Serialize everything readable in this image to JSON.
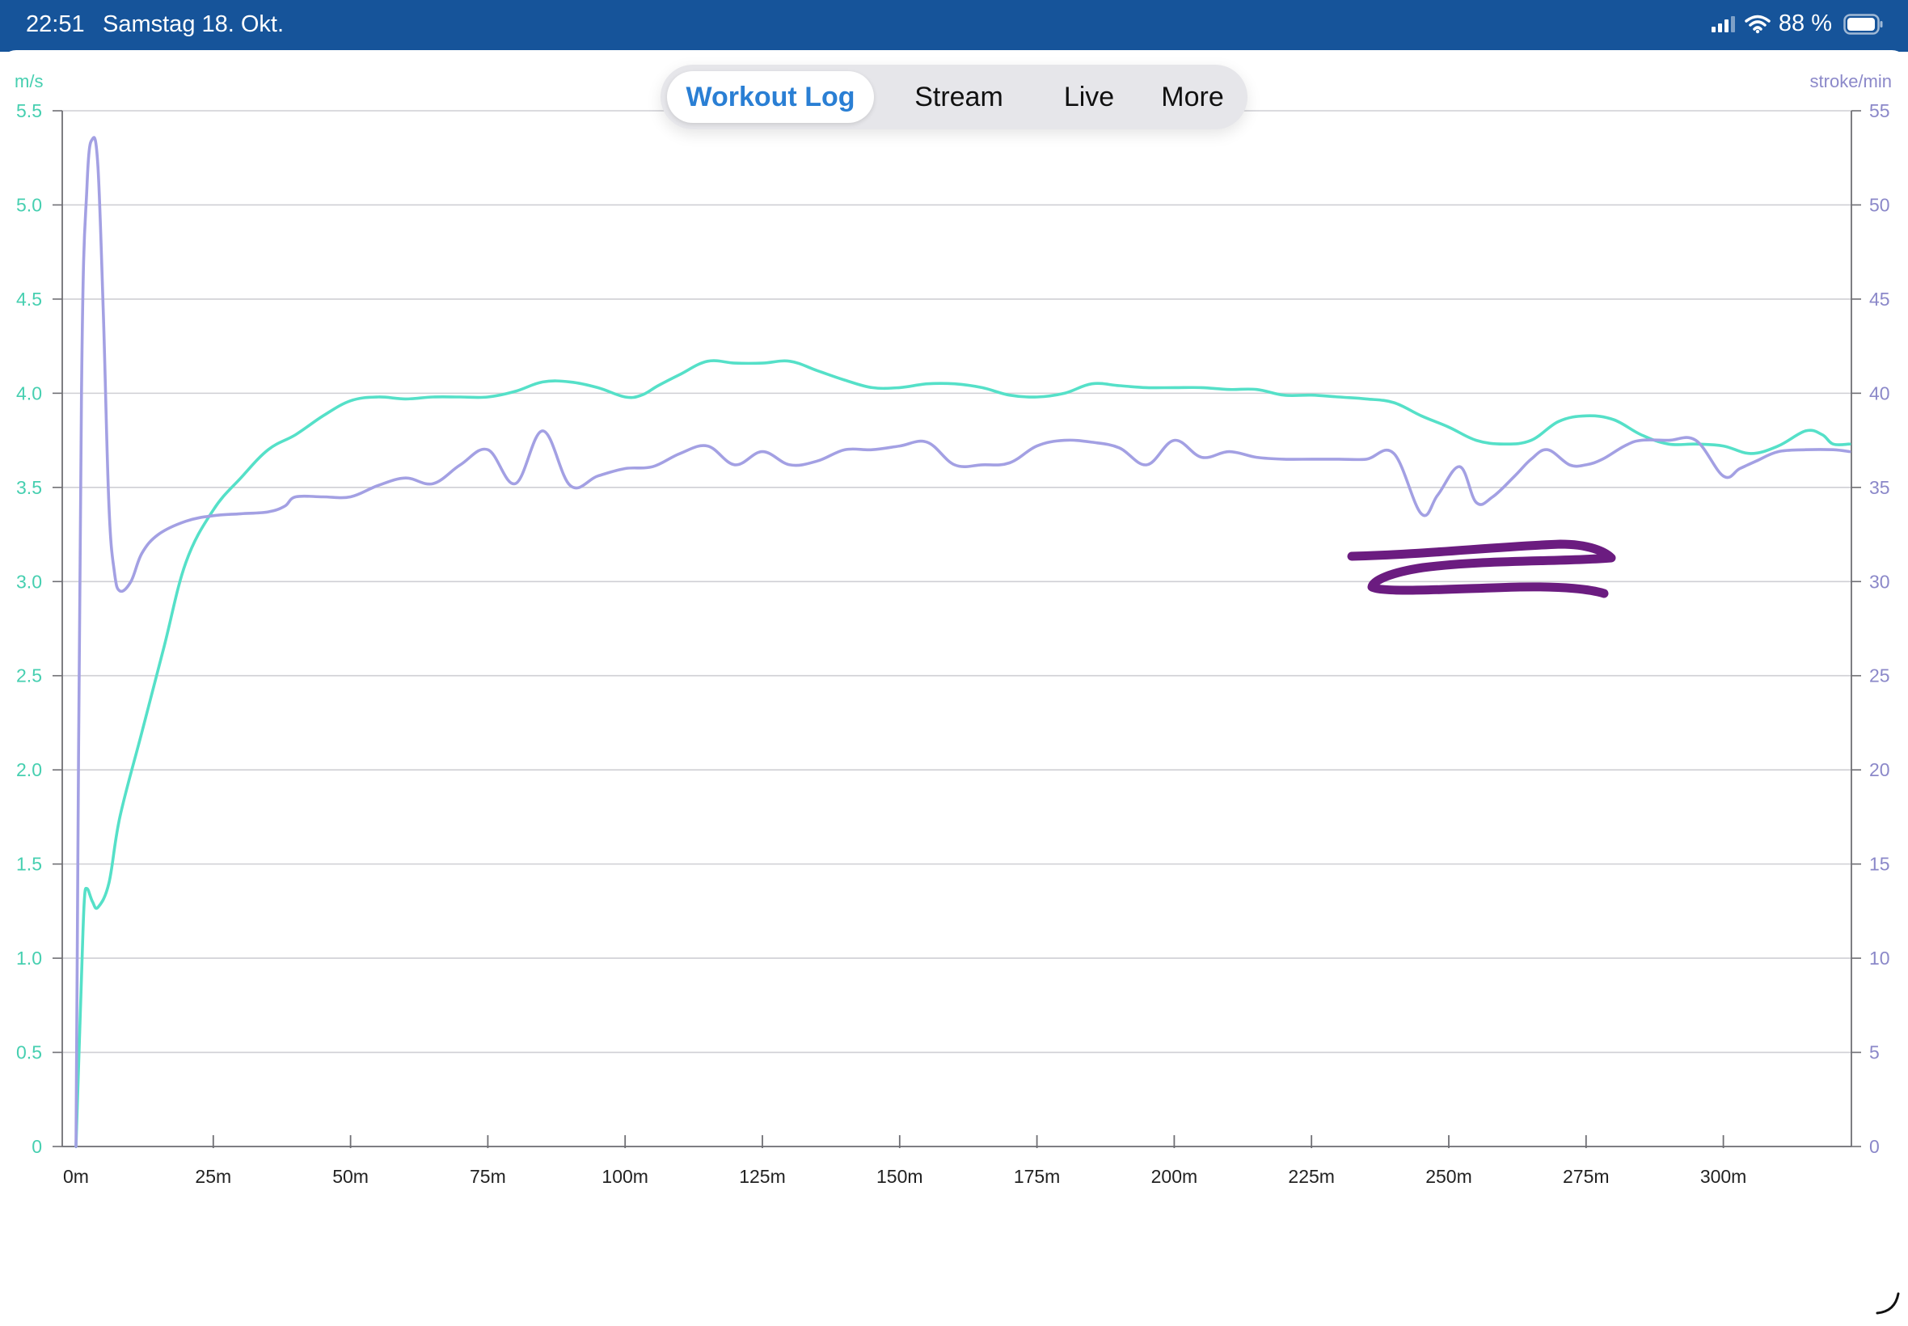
{
  "status_bar": {
    "time": "22:51",
    "date": "Samstag 18. Okt.",
    "battery": "88 %",
    "icons": [
      "cellular-signal-icon",
      "wifi-icon",
      "battery-icon"
    ]
  },
  "tabs": [
    {
      "label": "Workout Log",
      "active": true
    },
    {
      "label": "Stream",
      "active": false
    },
    {
      "label": "Live",
      "active": false
    },
    {
      "label": "More",
      "active": false
    }
  ],
  "colors": {
    "status_bar": "#16549a",
    "accent": "#2a7fd4",
    "speed": "#55e0c8",
    "stroke_rate": "#a3a0e3",
    "left_axis": "#46cfb0",
    "right_axis": "#8b88c9",
    "scribble": "#6b1c80"
  },
  "chart_data": {
    "type": "line",
    "x_unit_suffix": "m",
    "x_ticks": [
      0,
      25,
      50,
      75,
      100,
      125,
      150,
      175,
      200,
      225,
      250,
      275,
      300
    ],
    "x_tick_labels": [
      "0m",
      "25m",
      "50m",
      "75m",
      "100m",
      "125m",
      "150m",
      "175m",
      "200m",
      "225m",
      "250m",
      "275m",
      "300m"
    ],
    "xlim": [
      0,
      323
    ],
    "grid": true,
    "axes": {
      "left": {
        "unit_label": "m/s",
        "ylim": [
          0,
          5.5
        ],
        "ticks": [
          "0",
          "0.5",
          "1.0",
          "1.5",
          "2.0",
          "2.5",
          "3.0",
          "3.5",
          "4.0",
          "4.5",
          "5.0",
          "5.5"
        ]
      },
      "right": {
        "unit_label": "stroke/min",
        "ylim": [
          0,
          55
        ],
        "ticks": [
          "0",
          "5",
          "10",
          "15",
          "20",
          "25",
          "30",
          "35",
          "40",
          "45",
          "50",
          "55"
        ]
      }
    },
    "series": [
      {
        "key": "speed",
        "axis": "left",
        "x": [
          0,
          1,
          1.5,
          2,
          3,
          4,
          6,
          8,
          12,
          16,
          20,
          25,
          30,
          35,
          40,
          45,
          50,
          55,
          60,
          65,
          70,
          75,
          80,
          85,
          90,
          95,
          100,
          103,
          106,
          110,
          115,
          120,
          125,
          130,
          135,
          140,
          145,
          150,
          155,
          160,
          165,
          170,
          175,
          180,
          185,
          190,
          195,
          200,
          205,
          210,
          215,
          220,
          225,
          230,
          235,
          240,
          245,
          250,
          255,
          260,
          265,
          270,
          275,
          280,
          285,
          290,
          295,
          300,
          305,
          310,
          315,
          318,
          320,
          323
        ],
        "values": [
          0,
          0.9,
          1.3,
          1.37,
          1.3,
          1.27,
          1.4,
          1.75,
          2.2,
          2.65,
          3.1,
          3.38,
          3.55,
          3.7,
          3.78,
          3.88,
          3.96,
          3.98,
          3.97,
          3.98,
          3.98,
          3.98,
          4.01,
          4.06,
          4.06,
          4.03,
          3.98,
          3.99,
          4.04,
          4.1,
          4.17,
          4.16,
          4.16,
          4.17,
          4.12,
          4.07,
          4.03,
          4.03,
          4.05,
          4.05,
          4.03,
          3.99,
          3.98,
          4.0,
          4.05,
          4.04,
          4.03,
          4.03,
          4.03,
          4.02,
          4.02,
          3.99,
          3.99,
          3.98,
          3.97,
          3.95,
          3.88,
          3.82,
          3.75,
          3.73,
          3.75,
          3.85,
          3.88,
          3.86,
          3.78,
          3.73,
          3.73,
          3.72,
          3.68,
          3.72,
          3.8,
          3.78,
          3.73,
          3.73
        ]
      },
      {
        "key": "stroke_rate",
        "axis": "right",
        "x": [
          0,
          1,
          2,
          3,
          4,
          5,
          6,
          7,
          8,
          10,
          12,
          15,
          20,
          25,
          30,
          35,
          38,
          40,
          45,
          50,
          55,
          60,
          65,
          70,
          75,
          80,
          85,
          90,
          95,
          100,
          105,
          110,
          115,
          120,
          125,
          130,
          135,
          140,
          145,
          150,
          155,
          160,
          165,
          170,
          175,
          180,
          185,
          190,
          195,
          200,
          205,
          210,
          215,
          220,
          225,
          230,
          235,
          240,
          245,
          248,
          252,
          255,
          258,
          262,
          265,
          268,
          272,
          275,
          278,
          282,
          285,
          290,
          295,
          300,
          303,
          306,
          310,
          315,
          320,
          323
        ],
        "values": [
          0,
          40,
          51,
          53.5,
          52,
          44,
          34,
          30.5,
          29.5,
          30,
          31.5,
          32.5,
          33.2,
          33.5,
          33.6,
          33.7,
          34,
          34.5,
          34.5,
          34.5,
          35.1,
          35.5,
          35.2,
          36.2,
          37,
          35.2,
          38,
          35.1,
          35.6,
          36,
          36.1,
          36.8,
          37.2,
          36.2,
          36.9,
          36.2,
          36.4,
          37,
          37,
          37.2,
          37.4,
          36.2,
          36.2,
          36.3,
          37.2,
          37.5,
          37.4,
          37.1,
          36.2,
          37.5,
          36.6,
          36.9,
          36.6,
          36.5,
          36.5,
          36.5,
          36.5,
          36.8,
          33.6,
          34.6,
          36.1,
          34.2,
          34.5,
          35.6,
          36.5,
          37,
          36.2,
          36.2,
          36.5,
          37.2,
          37.5,
          37.5,
          37.5,
          35.6,
          36.0,
          36.4,
          36.9,
          37,
          37,
          36.9
        ]
      }
    ],
    "annotations": [
      {
        "type": "handwritten-scribble",
        "near_x": 262,
        "near_y_left": 3.05
      }
    ]
  }
}
